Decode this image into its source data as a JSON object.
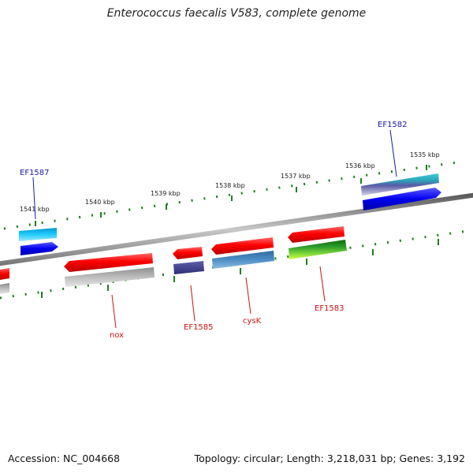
{
  "title": "Enterococcus faecalis V583, complete genome",
  "footer": {
    "accession": "Accession: NC_004668",
    "stats": "Topology: circular; Length: 3,218,031 bp; Genes: 3,192"
  },
  "colors": {
    "backbone": "#8a8a8a",
    "tick": "#1e7e1e",
    "forward_label": "#1a1aa6",
    "reverse_label": "#cc1111"
  },
  "ticks": [
    "1541 kbp",
    "1540 kbp",
    "1539 kbp",
    "1538 kbp",
    "1537 kbp",
    "1536 kbp",
    "1535 kbp"
  ],
  "gene_labels": [
    {
      "text": "EF1582",
      "strand": "forward"
    },
    {
      "text": "EF1587",
      "strand": "forward"
    },
    {
      "text": "nox",
      "strand": "reverse"
    },
    {
      "text": "EF1585",
      "strand": "reverse"
    },
    {
      "text": "cysK",
      "strand": "reverse"
    },
    {
      "text": "EF1583",
      "strand": "reverse"
    }
  ]
}
